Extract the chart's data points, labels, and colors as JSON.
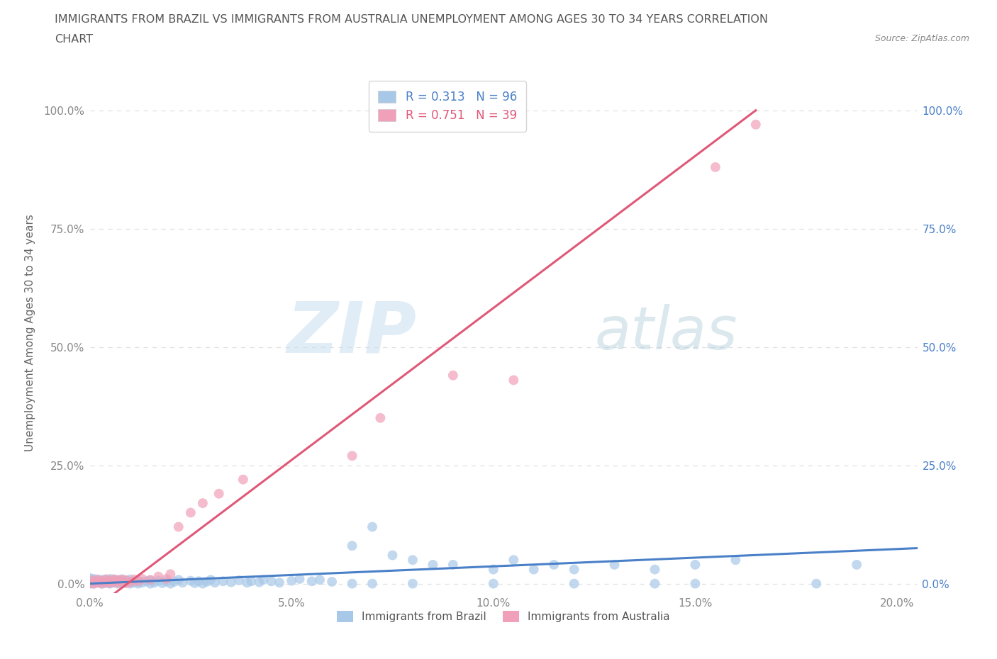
{
  "title_line1": "IMMIGRANTS FROM BRAZIL VS IMMIGRANTS FROM AUSTRALIA UNEMPLOYMENT AMONG AGES 30 TO 34 YEARS CORRELATION",
  "title_line2": "CHART",
  "source": "Source: ZipAtlas.com",
  "ylabel": "Unemployment Among Ages 30 to 34 years",
  "xlim": [
    0.0,
    0.205
  ],
  "ylim": [
    -0.02,
    1.08
  ],
  "xticks": [
    0.0,
    0.05,
    0.1,
    0.15,
    0.2
  ],
  "xticklabels": [
    "0.0%",
    "5.0%",
    "10.0%",
    "15.0%",
    "20.0%"
  ],
  "yticks": [
    0.0,
    0.25,
    0.5,
    0.75,
    1.0
  ],
  "yticklabels": [
    "0.0%",
    "25.0%",
    "50.0%",
    "75.0%",
    "100.0%"
  ],
  "brazil_color": "#a8c8e8",
  "australia_color": "#f0a0b8",
  "brazil_R": 0.313,
  "brazil_N": 96,
  "australia_R": 0.751,
  "australia_N": 39,
  "brazil_line_color": "#4a80c8",
  "australia_line_color": "#e05878",
  "background_color": "#ffffff",
  "grid_color": "#e0e0e0",
  "brazil_line": [
    0.0,
    0.0,
    0.205,
    0.075
  ],
  "australia_line": [
    0.0,
    -0.06,
    0.165,
    1.0
  ],
  "brazil_x": [
    0.0,
    0.0,
    0.0,
    0.0,
    0.0,
    0.001,
    0.001,
    0.001,
    0.001,
    0.002,
    0.002,
    0.002,
    0.003,
    0.003,
    0.003,
    0.004,
    0.004,
    0.004,
    0.005,
    0.005,
    0.005,
    0.005,
    0.006,
    0.006,
    0.006,
    0.007,
    0.007,
    0.007,
    0.008,
    0.008,
    0.008,
    0.009,
    0.009,
    0.01,
    0.01,
    0.01,
    0.011,
    0.012,
    0.012,
    0.013,
    0.014,
    0.015,
    0.015,
    0.016,
    0.017,
    0.018,
    0.019,
    0.02,
    0.021,
    0.022,
    0.023,
    0.025,
    0.026,
    0.027,
    0.028,
    0.029,
    0.03,
    0.031,
    0.033,
    0.035,
    0.037,
    0.039,
    0.04,
    0.042,
    0.043,
    0.045,
    0.047,
    0.05,
    0.052,
    0.055,
    0.057,
    0.06,
    0.065,
    0.07,
    0.075,
    0.08,
    0.085,
    0.09,
    0.1,
    0.105,
    0.11,
    0.115,
    0.12,
    0.13,
    0.14,
    0.15,
    0.16,
    0.065,
    0.07,
    0.08,
    0.1,
    0.12,
    0.14,
    0.15,
    0.18,
    0.19
  ],
  "brazil_y": [
    0.0,
    0.003,
    0.006,
    0.009,
    0.012,
    0.0,
    0.004,
    0.007,
    0.01,
    0.002,
    0.005,
    0.009,
    0.0,
    0.004,
    0.008,
    0.001,
    0.005,
    0.009,
    0.0,
    0.003,
    0.006,
    0.01,
    0.002,
    0.005,
    0.009,
    0.0,
    0.004,
    0.008,
    0.001,
    0.005,
    0.009,
    0.002,
    0.007,
    0.0,
    0.004,
    0.009,
    0.002,
    0.0,
    0.006,
    0.002,
    0.005,
    0.0,
    0.007,
    0.002,
    0.006,
    0.001,
    0.005,
    0.0,
    0.004,
    0.008,
    0.002,
    0.006,
    0.001,
    0.005,
    0.0,
    0.004,
    0.008,
    0.002,
    0.005,
    0.003,
    0.007,
    0.002,
    0.005,
    0.003,
    0.008,
    0.005,
    0.002,
    0.006,
    0.01,
    0.005,
    0.008,
    0.004,
    0.08,
    0.12,
    0.06,
    0.05,
    0.04,
    0.04,
    0.03,
    0.05,
    0.03,
    0.04,
    0.03,
    0.04,
    0.03,
    0.04,
    0.05,
    0.0,
    0.0,
    0.0,
    0.0,
    0.0,
    0.0,
    0.0,
    0.0,
    0.04
  ],
  "australia_x": [
    0.0,
    0.0,
    0.001,
    0.001,
    0.002,
    0.002,
    0.003,
    0.003,
    0.004,
    0.004,
    0.005,
    0.005,
    0.006,
    0.006,
    0.007,
    0.007,
    0.008,
    0.008,
    0.009,
    0.009,
    0.01,
    0.011,
    0.012,
    0.013,
    0.015,
    0.017,
    0.019,
    0.02,
    0.022,
    0.025,
    0.028,
    0.032,
    0.038,
    0.065,
    0.072,
    0.09,
    0.105,
    0.155,
    0.165
  ],
  "australia_y": [
    0.0,
    0.005,
    0.0,
    0.007,
    0.002,
    0.008,
    0.0,
    0.006,
    0.003,
    0.009,
    0.001,
    0.007,
    0.003,
    0.009,
    0.002,
    0.007,
    0.003,
    0.009,
    0.001,
    0.007,
    0.003,
    0.009,
    0.005,
    0.01,
    0.008,
    0.015,
    0.01,
    0.02,
    0.12,
    0.15,
    0.17,
    0.19,
    0.22,
    0.27,
    0.35,
    0.44,
    0.43,
    0.88,
    0.97
  ]
}
